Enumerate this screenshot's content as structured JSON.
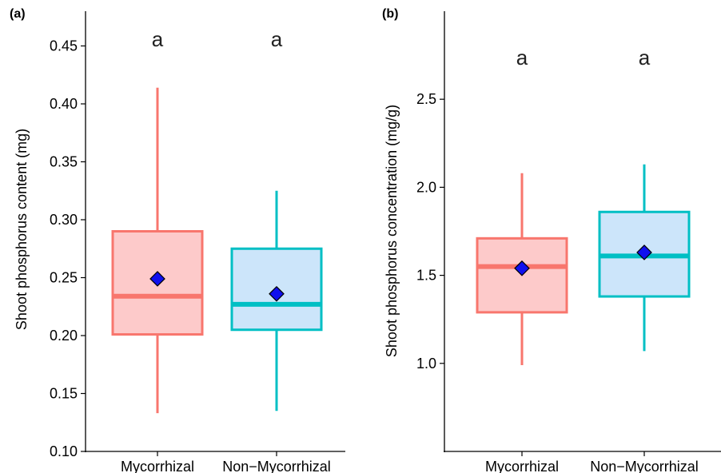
{
  "chart_data": [
    {
      "panel": "(a)",
      "type": "box",
      "ylabel": "Shoot phosphorus content (mg)",
      "ylim": [
        0.1,
        0.48
      ],
      "yticks": [
        0.1,
        0.15,
        0.2,
        0.25,
        0.3,
        0.35,
        0.4,
        0.45
      ],
      "ytick_labels": [
        "0.10",
        "0.15",
        "0.20",
        "0.25",
        "0.30",
        "0.35",
        "0.40",
        "0.45"
      ],
      "categories": [
        "Mycorrhizal",
        "Non−Mycorrhizal"
      ],
      "boxes": [
        {
          "category": "Mycorrhizal",
          "whisker_low": 0.133,
          "q1": 0.201,
          "median": 0.234,
          "q3": 0.29,
          "whisker_high": 0.414,
          "mean": 0.249,
          "letter": "a",
          "stroke": "#F8766D",
          "fill": "#FDCACA"
        },
        {
          "category": "Non−Mycorrhizal",
          "whisker_low": 0.135,
          "q1": 0.205,
          "median": 0.227,
          "q3": 0.275,
          "whisker_high": 0.325,
          "mean": 0.236,
          "letter": "a",
          "stroke": "#00BFC4",
          "fill": "#CCE5FA"
        }
      ],
      "mean_marker_color": "#1010EE"
    },
    {
      "panel": "(b)",
      "type": "box",
      "ylabel": "Shoot phosphorus concentration (mg/g)",
      "ylim": [
        0.5,
        3.0
      ],
      "yticks": [
        1.0,
        1.5,
        2.0,
        2.5
      ],
      "ytick_labels": [
        "1.0",
        "1.5",
        "2.0",
        "2.5"
      ],
      "categories": [
        "Mycorrhizal",
        "Non−Mycorrhizal"
      ],
      "boxes": [
        {
          "category": "Mycorrhizal",
          "whisker_low": 0.99,
          "q1": 1.29,
          "median": 1.55,
          "q3": 1.71,
          "whisker_high": 2.08,
          "mean": 1.54,
          "letter": "a",
          "stroke": "#F8766D",
          "fill": "#FDCACA"
        },
        {
          "category": "Non−Mycorrhizal",
          "whisker_low": 1.07,
          "q1": 1.38,
          "median": 1.61,
          "q3": 1.86,
          "whisker_high": 2.13,
          "mean": 1.63,
          "letter": "a",
          "stroke": "#00BFC4",
          "fill": "#CCE5FA"
        }
      ],
      "mean_marker_color": "#1010EE"
    }
  ]
}
